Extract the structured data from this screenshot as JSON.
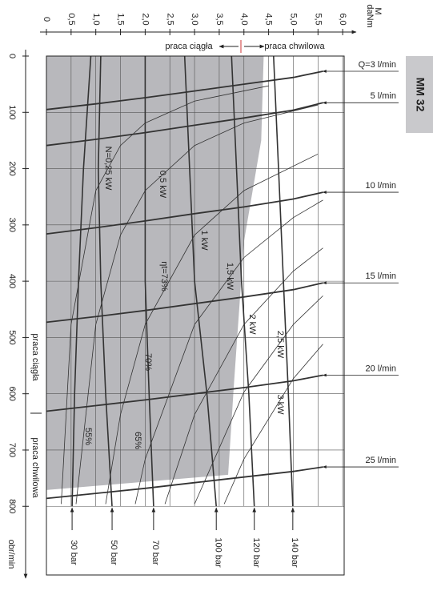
{
  "chart_data": {
    "type": "line",
    "side_label": "MM 32",
    "x_symbol": "M",
    "x_unit": "daNm",
    "y_label": "obr/min",
    "zone_continuous": "praca ciągła",
    "zone_intermittent": "praca chwilowa",
    "xlim": [
      0,
      6.03
    ],
    "ylim": [
      0,
      922
    ],
    "xticks": [
      0,
      {
        "value": 0.5,
        "label": "0,5"
      },
      {
        "value": 1.0,
        "label": "1,0"
      },
      {
        "value": 1.5,
        "label": "1,5"
      },
      {
        "value": 2.0,
        "label": "2,0"
      },
      {
        "value": 2.5,
        "label": "2,5"
      },
      {
        "value": 3.0,
        "label": "3,0"
      },
      {
        "value": 3.5,
        "label": "3,5"
      },
      {
        "value": 4.0,
        "label": "4,0"
      },
      {
        "value": 4.5,
        "label": "4,5"
      },
      {
        "value": 5.0,
        "label": "5,0"
      },
      {
        "value": 5.5,
        "label": "5,5"
      },
      {
        "value": 6.0,
        "label": "6,0"
      }
    ],
    "yticks": [
      0,
      100,
      200,
      300,
      400,
      500,
      600,
      700,
      800
    ],
    "grid": true,
    "continuous_region": {
      "color": "#b8b8bc",
      "x": [
        0,
        4.4,
        4.35,
        4.0,
        3.8,
        3.68,
        0
      ],
      "values": [
        0,
        0,
        150,
        330,
        580,
        744,
        771
      ]
    },
    "flow_series": [
      {
        "name": "Q=3 l/min",
        "x": [
          0,
          1,
          2,
          3,
          4,
          5,
          5.6
        ],
        "values": [
          95,
          85,
          74,
          62,
          50,
          38,
          27
        ]
      },
      {
        "name": "5 l/min",
        "x": [
          0,
          1,
          2,
          3,
          4,
          5,
          5.6
        ],
        "values": [
          159,
          148,
          136,
          123,
          110,
          96,
          83
        ]
      },
      {
        "name": "10 l/min",
        "x": [
          0,
          1,
          2,
          3,
          4,
          5,
          5.6
        ],
        "values": [
          316,
          305,
          293,
          280,
          268,
          254,
          242
        ]
      },
      {
        "name": "15 l/min",
        "x": [
          0,
          1,
          2,
          3,
          4,
          5,
          5.6
        ],
        "values": [
          473,
          463,
          452,
          440,
          428,
          415,
          403
        ]
      },
      {
        "name": "20 l/min",
        "x": [
          0,
          1,
          2,
          3,
          4,
          5,
          5.6
        ],
        "values": [
          631,
          621,
          611,
          600,
          589,
          577,
          567
        ]
      },
      {
        "name": "25 l/min",
        "x": [
          0,
          1,
          2,
          3,
          4,
          5,
          5.6
        ],
        "values": [
          786,
          777,
          768,
          758,
          748,
          738,
          730
        ]
      }
    ],
    "pressure_series": [
      {
        "name": "30 bar",
        "x": [
          0.9,
          0.75,
          0.65,
          0.57,
          0.52
        ],
        "values": [
          0,
          200,
          400,
          600,
          800
        ]
      },
      {
        "name": "50 bar",
        "x": [
          1.1,
          1.05,
          1.1,
          1.2,
          1.33
        ],
        "values": [
          0,
          200,
          400,
          600,
          800
        ]
      },
      {
        "name": "70 bar",
        "x": [
          2.0,
          2.0,
          2.0,
          2.08,
          2.17
        ],
        "values": [
          0,
          200,
          400,
          600,
          800
        ]
      },
      {
        "name": "100 bar",
        "x": [
          2.8,
          2.9,
          3.0,
          3.25,
          3.44
        ],
        "values": [
          0,
          200,
          400,
          600,
          800
        ]
      },
      {
        "name": "120 bar",
        "x": [
          3.75,
          3.85,
          3.95,
          4.1,
          4.21
        ],
        "values": [
          0,
          200,
          400,
          600,
          800
        ]
      },
      {
        "name": "140 bar",
        "x": [
          4.6,
          4.7,
          4.8,
          4.9,
          4.99
        ],
        "values": [
          0,
          200,
          400,
          600,
          800
        ]
      }
    ],
    "power_series": [
      {
        "name": "N=0,25 kW",
        "x": [
          0.3,
          0.5,
          1,
          1.5,
          2,
          3,
          4.5
        ],
        "values": [
          796,
          477,
          239,
          159,
          119,
          80,
          53
        ]
      },
      {
        "name": "0,5 kW",
        "x": [
          0.6,
          1,
          1.5,
          2,
          3,
          4,
          5.5
        ],
        "values": [
          796,
          477,
          318,
          239,
          159,
          119,
          87
        ]
      },
      {
        "name": "1 kW",
        "x": [
          1.2,
          1.5,
          2,
          3,
          4,
          5.5
        ],
        "values": [
          796,
          637,
          477,
          318,
          239,
          174
        ]
      },
      {
        "name": "1,5 kW",
        "x": [
          1.8,
          2,
          3,
          4,
          5,
          5.6
        ],
        "values": [
          796,
          716,
          477,
          358,
          287,
          256
        ]
      },
      {
        "name": "2 kW",
        "x": [
          2.4,
          3,
          4,
          5,
          5.6
        ],
        "values": [
          796,
          637,
          477,
          382,
          341
        ]
      },
      {
        "name": "2,5 kW",
        "x": [
          3,
          4,
          5,
          5.6
        ],
        "values": [
          796,
          597,
          477,
          426
        ]
      },
      {
        "name": "3 kW",
        "x": [
          3.6,
          4,
          5,
          5.6
        ],
        "values": [
          796,
          716,
          573,
          512
        ]
      }
    ],
    "efficiency_labels": [
      "ηt=73%",
      "70%",
      "65%",
      "55%"
    ]
  }
}
